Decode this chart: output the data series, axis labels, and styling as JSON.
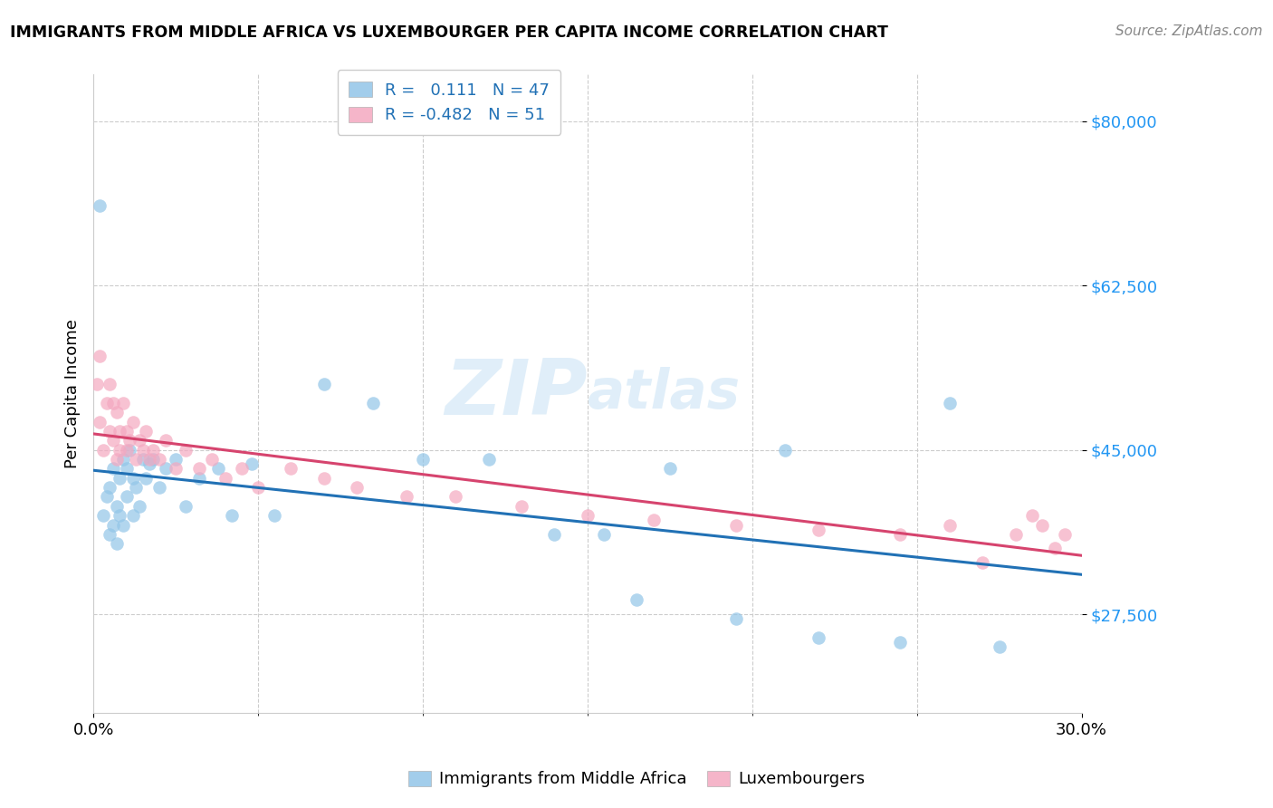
{
  "title": "IMMIGRANTS FROM MIDDLE AFRICA VS LUXEMBOURGER PER CAPITA INCOME CORRELATION CHART",
  "source": "Source: ZipAtlas.com",
  "ylabel": "Per Capita Income",
  "y_ticks": [
    27500,
    45000,
    62500,
    80000
  ],
  "y_tick_labels": [
    "$27,500",
    "$45,000",
    "$62,500",
    "$80,000"
  ],
  "xlim": [
    0.0,
    0.3
  ],
  "ylim": [
    17000,
    85000
  ],
  "legend_blue_r": "0.111",
  "legend_blue_n": "47",
  "legend_pink_r": "-0.482",
  "legend_pink_n": "51",
  "legend_label_blue": "Immigrants from Middle Africa",
  "legend_label_pink": "Luxembourgers",
  "watermark_zip": "ZIP",
  "watermark_atlas": "atlas",
  "blue_color": "#92c5e8",
  "pink_color": "#f4a8c0",
  "line_blue": "#2171b5",
  "line_pink": "#d6446e",
  "ytick_color": "#2196F3",
  "blue_scatter_x": [
    0.002,
    0.003,
    0.004,
    0.005,
    0.005,
    0.006,
    0.006,
    0.007,
    0.007,
    0.008,
    0.008,
    0.009,
    0.009,
    0.01,
    0.01,
    0.011,
    0.012,
    0.012,
    0.013,
    0.014,
    0.015,
    0.016,
    0.017,
    0.018,
    0.02,
    0.022,
    0.025,
    0.028,
    0.032,
    0.038,
    0.042,
    0.048,
    0.055,
    0.07,
    0.085,
    0.1,
    0.12,
    0.14,
    0.155,
    0.165,
    0.175,
    0.195,
    0.21,
    0.22,
    0.245,
    0.26,
    0.275
  ],
  "blue_scatter_y": [
    71000,
    38000,
    40000,
    41000,
    36000,
    37000,
    43000,
    39000,
    35000,
    42000,
    38000,
    44000,
    37000,
    43000,
    40000,
    45000,
    38000,
    42000,
    41000,
    39000,
    44000,
    42000,
    43500,
    44000,
    41000,
    43000,
    44000,
    39000,
    42000,
    43000,
    38000,
    43500,
    38000,
    52000,
    50000,
    44000,
    44000,
    36000,
    36000,
    29000,
    43000,
    27000,
    45000,
    25000,
    24500,
    50000,
    24000
  ],
  "pink_scatter_x": [
    0.001,
    0.002,
    0.002,
    0.003,
    0.004,
    0.005,
    0.005,
    0.006,
    0.006,
    0.007,
    0.007,
    0.008,
    0.008,
    0.009,
    0.01,
    0.01,
    0.011,
    0.012,
    0.013,
    0.014,
    0.015,
    0.016,
    0.017,
    0.018,
    0.02,
    0.022,
    0.025,
    0.028,
    0.032,
    0.036,
    0.04,
    0.045,
    0.05,
    0.06,
    0.07,
    0.08,
    0.095,
    0.11,
    0.13,
    0.15,
    0.17,
    0.195,
    0.22,
    0.245,
    0.26,
    0.27,
    0.28,
    0.285,
    0.288,
    0.292,
    0.295
  ],
  "pink_scatter_y": [
    52000,
    48000,
    55000,
    45000,
    50000,
    47000,
    52000,
    46000,
    50000,
    44000,
    49000,
    47000,
    45000,
    50000,
    47000,
    45000,
    46000,
    48000,
    44000,
    46000,
    45000,
    47000,
    44000,
    45000,
    44000,
    46000,
    43000,
    45000,
    43000,
    44000,
    42000,
    43000,
    41000,
    43000,
    42000,
    41000,
    40000,
    40000,
    39000,
    38000,
    37500,
    37000,
    36500,
    36000,
    37000,
    33000,
    36000,
    38000,
    37000,
    34500,
    36000
  ]
}
